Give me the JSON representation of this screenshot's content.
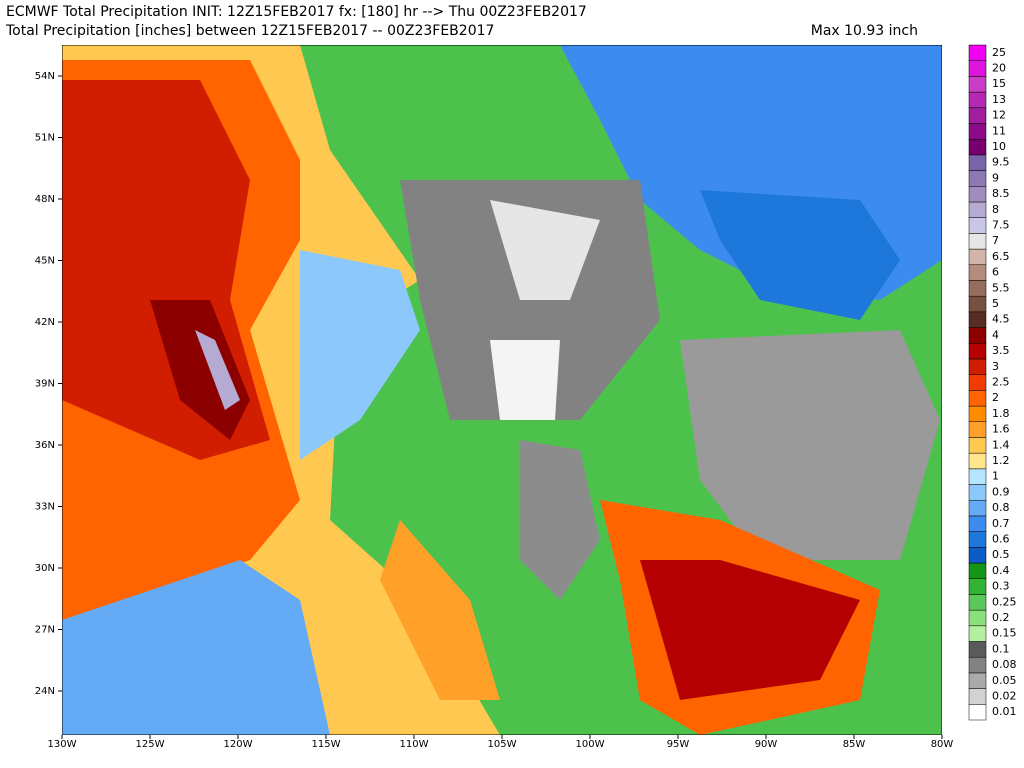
{
  "header": {
    "line1": "ECMWF Total Precipitation INIT: 12Z15FEB2017 fx: [180] hr --> Thu 00Z23FEB2017",
    "line2": "Total Precipitation [inches] between 12Z15FEB2017 -- 00Z23FEB2017",
    "max": "Max 10.93 inch"
  },
  "map": {
    "lat_labels": [
      "54N",
      "51N",
      "48N",
      "45N",
      "42N",
      "39N",
      "36N",
      "33N",
      "30N",
      "27N",
      "24N"
    ],
    "lon_labels": [
      "130W",
      "125W",
      "120W",
      "115W",
      "110W",
      "105W",
      "100W",
      "95W",
      "90W",
      "85W",
      "80W"
    ]
  },
  "colorbar": [
    {
      "label": "0.01",
      "color": "#ffffff"
    },
    {
      "label": "0.02",
      "color": "#d2d2d2"
    },
    {
      "label": "0.05",
      "color": "#aaaaaa"
    },
    {
      "label": "0.08",
      "color": "#828282"
    },
    {
      "label": "0.1",
      "color": "#5a5a5a"
    },
    {
      "label": "0.15",
      "color": "#b4f0a0"
    },
    {
      "label": "0.2",
      "color": "#8ce07c"
    },
    {
      "label": "0.25",
      "color": "#5ac85a"
    },
    {
      "label": "0.3",
      "color": "#32b432"
    },
    {
      "label": "0.4",
      "color": "#149614"
    },
    {
      "label": "0.5",
      "color": "#0a5ac8"
    },
    {
      "label": "0.6",
      "color": "#1e78dc"
    },
    {
      "label": "0.7",
      "color": "#3c8cf0"
    },
    {
      "label": "0.8",
      "color": "#64aaf5"
    },
    {
      "label": "0.9",
      "color": "#8cc8fa"
    },
    {
      "label": "1",
      "color": "#b4e6ff"
    },
    {
      "label": "1.2",
      "color": "#ffe68c"
    },
    {
      "label": "1.4",
      "color": "#ffc850"
    },
    {
      "label": "1.6",
      "color": "#ffa028"
    },
    {
      "label": "1.8",
      "color": "#ff8c00"
    },
    {
      "label": "2",
      "color": "#ff6400"
    },
    {
      "label": "2.5",
      "color": "#f03c00"
    },
    {
      "label": "3",
      "color": "#d21e00"
    },
    {
      "label": "3.5",
      "color": "#b40000"
    },
    {
      "label": "4",
      "color": "#8c0000"
    },
    {
      "label": "4.5",
      "color": "#5a2d23"
    },
    {
      "label": "5",
      "color": "#785041"
    },
    {
      "label": "5.5",
      "color": "#966e5f"
    },
    {
      "label": "6",
      "color": "#b48c7d"
    },
    {
      "label": "6.5",
      "color": "#d2b4aa"
    },
    {
      "label": "7",
      "color": "#e6e6e6"
    },
    {
      "label": "7.5",
      "color": "#c8c8e6"
    },
    {
      "label": "8",
      "color": "#b4aad2"
    },
    {
      "label": "8.5",
      "color": "#a08cbe"
    },
    {
      "label": "9",
      "color": "#8c78b4"
    },
    {
      "label": "9.5",
      "color": "#7864aa"
    },
    {
      "label": "10",
      "color": "#78006e"
    },
    {
      "label": "11",
      "color": "#8c0a8c"
    },
    {
      "label": "12",
      "color": "#a01ea0"
    },
    {
      "label": "13",
      "color": "#b428b4"
    },
    {
      "label": "15",
      "color": "#c83cc8"
    },
    {
      "label": "20",
      "color": "#dc14dc"
    },
    {
      "label": "25",
      "color": "#f000f0"
    }
  ]
}
